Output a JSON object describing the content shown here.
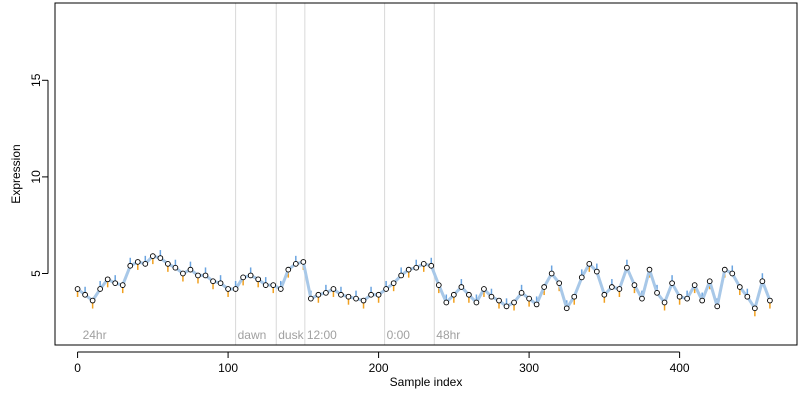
{
  "chart_data": {
    "type": "scatter",
    "xlabel": "Sample index",
    "ylabel": "Expression",
    "xlim": [
      -15,
      478
    ],
    "ylim": [
      1.3,
      19.0
    ],
    "x_ticks": [
      0,
      100,
      200,
      300,
      400
    ],
    "y_ticks": [
      5,
      10,
      15
    ],
    "grid": false,
    "legend": "none",
    "colors": {
      "points_fill": "#ffffff",
      "points_stroke": "#000000",
      "fit_line": "#a8c8e8",
      "residual_up": "#f0a020",
      "residual_down": "#6aa4e0",
      "divider": "#d8d8d8",
      "region_label": "#a0a0a0"
    },
    "regions": [
      {
        "label": "24hr",
        "start": 2
      },
      {
        "label": "dawn",
        "start": 105
      },
      {
        "label": "dusk",
        "start": 132
      },
      {
        "label": "12:00",
        "start": 151
      },
      {
        "label": "0:00",
        "start": 204
      },
      {
        "label": "48hr",
        "start": 237
      }
    ],
    "series": [
      {
        "x": [
          0,
          5,
          10,
          15,
          20,
          25,
          30,
          35,
          40,
          45,
          50,
          55,
          60,
          65,
          70,
          75,
          80,
          85,
          90,
          95,
          100,
          105,
          110,
          115,
          120,
          125,
          130,
          135,
          140,
          145,
          150,
          155,
          160,
          165,
          170,
          175,
          180,
          185,
          190,
          195,
          200,
          205,
          210,
          215,
          220,
          225,
          230,
          235,
          240,
          245,
          250,
          255,
          260,
          265,
          270,
          275,
          280,
          285,
          290,
          295,
          300,
          305,
          310,
          315,
          320,
          325,
          330,
          335,
          340,
          345,
          350,
          355,
          360,
          365,
          370,
          375,
          380,
          385,
          390,
          395,
          400,
          405,
          410,
          415,
          420,
          425,
          430,
          435,
          440,
          445,
          450,
          455,
          460
        ],
        "y": [
          4.2,
          3.9,
          3.6,
          4.2,
          4.7,
          4.5,
          4.4,
          5.4,
          5.6,
          5.5,
          5.9,
          5.8,
          5.5,
          5.3,
          5.0,
          5.2,
          4.9,
          4.9,
          4.6,
          4.5,
          4.2,
          4.2,
          4.8,
          4.9,
          4.7,
          4.4,
          4.4,
          4.2,
          5.2,
          5.5,
          5.6,
          3.7,
          3.9,
          4.0,
          4.2,
          3.9,
          3.8,
          3.7,
          3.6,
          3.9,
          3.9,
          4.2,
          4.5,
          4.9,
          5.2,
          5.3,
          5.5,
          5.4,
          4.4,
          3.5,
          3.9,
          4.3,
          3.9,
          3.5,
          4.2,
          3.8,
          3.6,
          3.3,
          3.5,
          4.0,
          3.7,
          3.4,
          4.3,
          5.0,
          4.5,
          3.2,
          3.8,
          4.8,
          5.5,
          5.1,
          3.9,
          4.3,
          4.2,
          5.3,
          4.4,
          3.7,
          5.2,
          4.0,
          3.5,
          4.5,
          3.8,
          3.7,
          4.4,
          3.6,
          4.6,
          3.3,
          5.2,
          5.0,
          4.3,
          3.8,
          3.2,
          4.6,
          3.6
        ]
      }
    ]
  }
}
